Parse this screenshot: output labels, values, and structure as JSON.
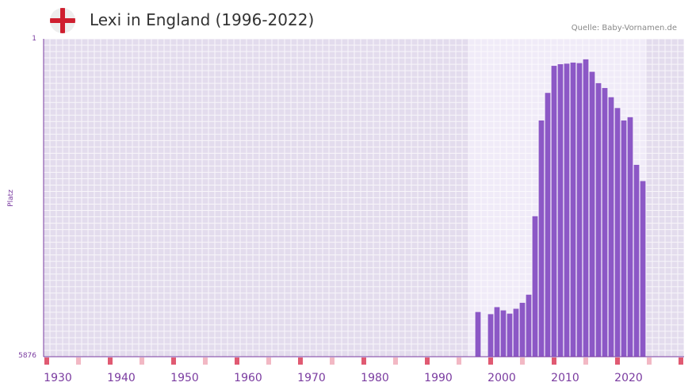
{
  "colors": {
    "bar": "#8c58c6",
    "plot_bg": "#e3dced",
    "highlight_bg": "#f0ebf8",
    "axis": "#7a3ba0",
    "marker_major": "#e05a72",
    "marker_minor": "#f2b8c4"
  },
  "header": {
    "flag_icon": "england-flag-icon",
    "source": "Quelle: Baby-Vornamen.de"
  },
  "chart_data": {
    "type": "bar",
    "title": "Lexi in England (1996-2022)",
    "xlabel": "",
    "ylabel": "Platz",
    "y_axis": {
      "top_label": "1",
      "bottom_label": "5876",
      "inverted": true,
      "range": [
        1,
        5876
      ]
    },
    "x_range": [
      1928,
      2028
    ],
    "highlight_range": [
      1996,
      2022
    ],
    "x_ticks": [
      1930,
      1940,
      1950,
      1960,
      1970,
      1980,
      1990,
      2000,
      2010,
      2020
    ],
    "years": [
      1996,
      1997,
      1998,
      1999,
      2000,
      2001,
      2002,
      2003,
      2004,
      2005,
      2006,
      2007,
      2008,
      2009,
      2010,
      2011,
      2012,
      2013,
      2014,
      2015,
      2016,
      2017,
      2018,
      2019,
      2020,
      2021,
      2022
    ],
    "ranks": [
      5050,
      null,
      5090,
      4960,
      5020,
      5080,
      4990,
      4880,
      4730,
      3280,
      1510,
      1000,
      500,
      470,
      460,
      440,
      450,
      380,
      610,
      820,
      910,
      1080,
      1280,
      1510,
      1450,
      2330,
      2630
    ]
  }
}
